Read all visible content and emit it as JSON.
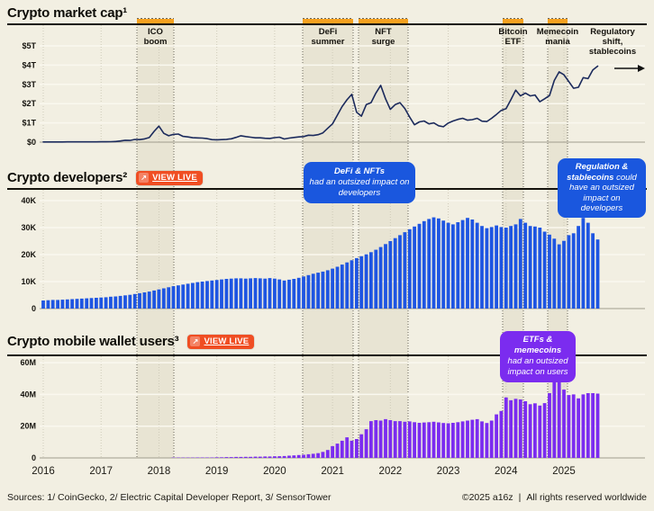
{
  "sections": {
    "market_cap": {
      "title": "Crypto market cap¹"
    },
    "developers": {
      "title": "Crypto developers²",
      "view_live": "VIEW LIVE",
      "view_live_icon": "↗"
    },
    "wallets": {
      "title": "Crypto mobile wallet users³",
      "view_live": "VIEW LIVE",
      "view_live_icon": "↗"
    }
  },
  "callouts": {
    "defi": {
      "bold": "DeFi & NFTs",
      "rest": "had an outsized impact on developers"
    },
    "regulation": {
      "bold": "Regulation & stablecoins",
      "rest": "could have an outsized impact on developers"
    },
    "etfs": {
      "bold": "ETFs & memecoins",
      "rest": "had an outsized impact on users"
    }
  },
  "footer": {
    "sources": "Sources: 1/ CoinGecko, 2/ Electric Capital Developer Report, 3/ SensorTower",
    "copyright": "©2025 a16z",
    "divider": "|",
    "rights": "All rights reserved worldwide"
  },
  "colors": {
    "background": "#F2EFE2",
    "band_fill": "#E8E4D3",
    "band_edge": "#6B675C",
    "orange_marker": "#F6A11F",
    "button": "#F04E23",
    "navy_line": "#1B2A5C",
    "blue_bar": "#1E55E2",
    "purple_bar": "#7B2CF0",
    "callout_blue": "#1A57DE",
    "callout_purple": "#7B2CEF",
    "gridline": "#FAF8EF",
    "baseline": "#A09C8E",
    "rule": "#15130D",
    "year_line": "#CFCBB9"
  },
  "annotations": [
    {
      "label": [
        "ICO",
        "boom"
      ],
      "x_range": [
        152,
        193
      ],
      "band": true,
      "arrow": false
    },
    {
      "label": [
        "DeFi",
        "summer"
      ],
      "x_range": [
        336,
        392
      ],
      "band": true,
      "arrow": false
    },
    {
      "label": [
        "NFT",
        "surge"
      ],
      "x_range": [
        398,
        453
      ],
      "band": true,
      "arrow": false
    },
    {
      "label": [
        "Bitcoin",
        "ETF"
      ],
      "x_range": [
        558,
        581
      ],
      "band": true,
      "arrow": false
    },
    {
      "label": [
        "Memecoin",
        "mania"
      ],
      "x_range": [
        608,
        630
      ],
      "band": true,
      "arrow": false
    },
    {
      "label": [
        "Regulatory",
        "shift,",
        "stablecoins"
      ],
      "x_range": [
        648,
        712
      ],
      "band": false,
      "arrow": true
    }
  ],
  "x_years": [
    "2016",
    "2017",
    "2018",
    "2019",
    "2020",
    "2021",
    "2022",
    "2023",
    "2024",
    "2025"
  ],
  "chart_data": [
    {
      "type": "line",
      "title": "Crypto market cap¹",
      "unit": "$ trillions",
      "cadence": "monthly",
      "x_start": "2016-01",
      "x_end": "2025-08",
      "ylim": [
        0,
        5.5
      ],
      "yticks": {
        "values": [
          0,
          1,
          2,
          3,
          4,
          5
        ],
        "labels": [
          "$0",
          "$1T",
          "$2T",
          "$3T",
          "$4T",
          "$5T"
        ]
      },
      "values": [
        0.009,
        0.009,
        0.01,
        0.01,
        0.011,
        0.012,
        0.012,
        0.012,
        0.013,
        0.013,
        0.014,
        0.016,
        0.018,
        0.021,
        0.025,
        0.035,
        0.06,
        0.1,
        0.09,
        0.14,
        0.13,
        0.17,
        0.24,
        0.56,
        0.83,
        0.46,
        0.33,
        0.4,
        0.42,
        0.3,
        0.27,
        0.23,
        0.22,
        0.21,
        0.18,
        0.13,
        0.12,
        0.13,
        0.145,
        0.175,
        0.25,
        0.33,
        0.29,
        0.255,
        0.225,
        0.222,
        0.2,
        0.19,
        0.235,
        0.255,
        0.165,
        0.21,
        0.245,
        0.27,
        0.29,
        0.36,
        0.345,
        0.39,
        0.48,
        0.72,
        0.95,
        1.4,
        1.85,
        2.2,
        2.48,
        1.55,
        1.35,
        1.95,
        2.05,
        2.55,
        2.95,
        2.25,
        1.7,
        1.95,
        2.05,
        1.75,
        1.3,
        0.9,
        1.05,
        1.1,
        0.95,
        1.0,
        0.85,
        0.8,
        0.99,
        1.1,
        1.18,
        1.24,
        1.14,
        1.17,
        1.24,
        1.09,
        1.07,
        1.24,
        1.44,
        1.65,
        1.74,
        2.2,
        2.7,
        2.4,
        2.55,
        2.4,
        2.45,
        2.1,
        2.25,
        2.42,
        3.2,
        3.65,
        3.5,
        3.15,
        2.8,
        2.85,
        3.35,
        3.3,
        3.75,
        3.95
      ]
    },
    {
      "type": "bar",
      "title": "Crypto developers²",
      "unit": "thousands of developers",
      "cadence": "monthly",
      "x_start": "2016-01",
      "x_end": "2025-08",
      "ylim": [
        0,
        43
      ],
      "yticks": {
        "values": [
          0,
          10,
          20,
          30,
          40
        ],
        "labels": [
          "0",
          "10K",
          "20K",
          "30K",
          "40K"
        ]
      },
      "values": [
        3.0,
        3.1,
        3.2,
        3.2,
        3.3,
        3.4,
        3.5,
        3.6,
        3.7,
        3.8,
        3.9,
        4.0,
        4.1,
        4.2,
        4.4,
        4.5,
        4.7,
        4.9,
        5.1,
        5.4,
        5.7,
        6.0,
        6.3,
        6.7,
        7.1,
        7.5,
        7.9,
        8.3,
        8.6,
        8.9,
        9.2,
        9.5,
        9.8,
        10.0,
        10.2,
        10.4,
        10.6,
        10.8,
        11.0,
        11.1,
        11.2,
        11.2,
        11.1,
        11.2,
        11.3,
        11.2,
        11.1,
        11.3,
        11.1,
        10.8,
        10.4,
        10.7,
        11.0,
        11.4,
        11.9,
        12.4,
        12.9,
        13.3,
        13.7,
        14.2,
        14.8,
        15.5,
        16.3,
        17.1,
        17.9,
        18.7,
        19.4,
        20.1,
        20.9,
        21.8,
        22.8,
        23.9,
        25.0,
        26.1,
        27.2,
        28.3,
        29.4,
        30.4,
        31.4,
        32.4,
        33.2,
        33.8,
        33.4,
        32.6,
        31.8,
        31.2,
        32.0,
        32.8,
        33.6,
        33.0,
        31.8,
        30.6,
        29.8,
        30.2,
        30.8,
        30.2,
        30.0,
        30.6,
        31.2,
        33.2,
        31.8,
        30.6,
        30.4,
        30.0,
        28.5,
        27.4,
        25.9,
        23.8,
        25.1,
        27.2,
        27.9,
        30.6,
        33.6,
        31.8,
        27.9,
        25.6
      ]
    },
    {
      "type": "bar",
      "title": "Crypto mobile wallet users³",
      "unit": "millions of users",
      "cadence": "monthly",
      "x_start": "2016-01",
      "x_end": "2025-08",
      "ylim": [
        0,
        66
      ],
      "yticks": {
        "values": [
          0,
          20,
          40,
          60
        ],
        "labels": [
          "0",
          "20M",
          "40M",
          "60M"
        ]
      },
      "values": [
        0,
        0,
        0,
        0,
        0,
        0,
        0,
        0,
        0,
        0,
        0,
        0,
        0.1,
        0.1,
        0.1,
        0.1,
        0.1,
        0.1,
        0.1,
        0.1,
        0.1,
        0.1,
        0.1,
        0.1,
        0.1,
        0.1,
        0.1,
        0.2,
        0.2,
        0.2,
        0.2,
        0.2,
        0.3,
        0.3,
        0.3,
        0.3,
        0.4,
        0.4,
        0.5,
        0.5,
        0.6,
        0.6,
        0.7,
        0.7,
        0.8,
        0.8,
        0.9,
        0.9,
        1.0,
        1.1,
        1.2,
        1.4,
        1.6,
        1.8,
        2.0,
        2.3,
        2.6,
        3.0,
        3.8,
        5.0,
        7.4,
        9.0,
        10.8,
        13.0,
        10.8,
        11.9,
        14.9,
        18.1,
        23.2,
        23.8,
        23.5,
        24.4,
        23.8,
        23.2,
        23.2,
        22.8,
        23.0,
        22.5,
        22.1,
        22.3,
        22.5,
        22.8,
        22.4,
        22.0,
        21.8,
        22.1,
        22.5,
        23.0,
        23.5,
        24.0,
        24.4,
        23.0,
        22.0,
        23.5,
        27.4,
        29.6,
        38.1,
        36.3,
        37.2,
        36.8,
        35.7,
        33.8,
        34.4,
        33.0,
        34.5,
        40.8,
        49.5,
        47.6,
        43.0,
        39.6,
        40.0,
        37.5,
        40.0,
        40.8,
        40.8,
        40.5
      ]
    }
  ]
}
